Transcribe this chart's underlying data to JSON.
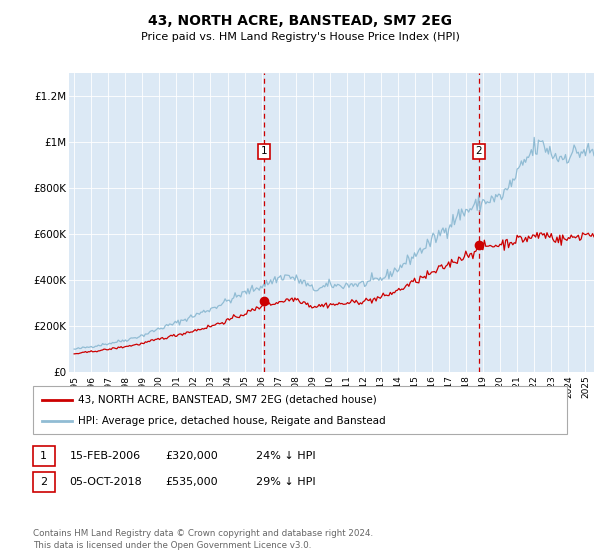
{
  "title": "43, NORTH ACRE, BANSTEAD, SM7 2EG",
  "subtitle": "Price paid vs. HM Land Registry's House Price Index (HPI)",
  "ylim": [
    0,
    1300000
  ],
  "yticks": [
    0,
    200000,
    400000,
    600000,
    800000,
    1000000,
    1200000
  ],
  "ytick_labels": [
    "£0",
    "£200K",
    "£400K",
    "£600K",
    "£800K",
    "£1M",
    "£1.2M"
  ],
  "plot_bg": "#dce9f5",
  "red_line_color": "#cc0000",
  "blue_line_color": "#91bcd4",
  "vline_color": "#cc0000",
  "t1_year_float": 2006.12,
  "t1_price": 320000,
  "t2_year_float": 2018.75,
  "t2_price": 535000,
  "legend_line1": "43, NORTH ACRE, BANSTEAD, SM7 2EG (detached house)",
  "legend_line2": "HPI: Average price, detached house, Reigate and Banstead",
  "t1_date": "15-FEB-2006",
  "t1_paid": "£320,000",
  "t1_hpi": "24% ↓ HPI",
  "t2_date": "05-OCT-2018",
  "t2_paid": "£535,000",
  "t2_hpi": "29% ↓ HPI",
  "footer": "Contains HM Land Registry data © Crown copyright and database right 2024.\nThis data is licensed under the Open Government Licence v3.0.",
  "xmin": 1994.7,
  "xmax": 2025.5
}
